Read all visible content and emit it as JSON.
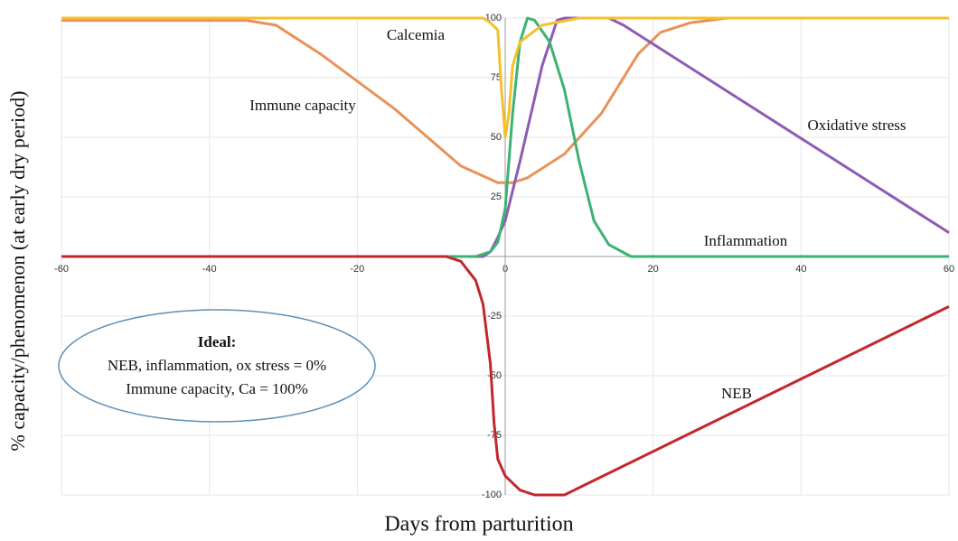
{
  "chart_data": {
    "type": "line",
    "x_label": "Days from parturition",
    "y_label": "% capacity/phenomenon (at early dry period)",
    "xlim": [
      -60,
      60
    ],
    "xticks": [
      -60,
      -40,
      -20,
      0,
      20,
      40,
      60
    ],
    "ylim": [
      -100,
      100
    ],
    "yticks": [
      100,
      75,
      50,
      25,
      -25,
      -50,
      -75,
      -100
    ],
    "grid": true,
    "series": [
      {
        "name": "Immune capacity",
        "color": "#e8925a",
        "x": [
          -60,
          -35,
          -31,
          -25,
          -15,
          -6,
          -1,
          1,
          3,
          8,
          13,
          18,
          21,
          25,
          30,
          60
        ],
        "values": [
          99,
          99,
          97,
          85,
          62,
          38,
          31,
          31,
          33,
          43,
          60,
          85,
          94,
          98,
          100,
          100
        ]
      },
      {
        "name": "Oxidative stress",
        "color": "#8e5bb5",
        "x": [
          -60,
          -3,
          -2,
          -1,
          0,
          2,
          5,
          7,
          8,
          14,
          16,
          60
        ],
        "values": [
          0,
          0,
          2,
          8,
          15,
          40,
          80,
          99,
          100,
          100,
          97,
          10
        ]
      },
      {
        "name": "Inflammation",
        "color": "#3cb371",
        "x": [
          -60,
          -4,
          -2,
          -1,
          0,
          1,
          2,
          3,
          4,
          6,
          8,
          10,
          12,
          14,
          17,
          60
        ],
        "values": [
          0,
          0,
          2,
          6,
          20,
          60,
          90,
          100,
          99,
          90,
          70,
          40,
          15,
          5,
          0,
          0
        ]
      },
      {
        "name": "NEB",
        "color": "#c0282d",
        "x": [
          -60,
          -8,
          -6,
          -4,
          -3,
          -2,
          -1.5,
          -1,
          0,
          2,
          4,
          8,
          60
        ],
        "values": [
          0,
          0,
          -2,
          -10,
          -20,
          -45,
          -70,
          -85,
          -92,
          -98,
          -100,
          -100,
          -21
        ]
      },
      {
        "name": "Calcemia",
        "color": "#f5c02a",
        "x": [
          -60,
          -3,
          -2,
          -1,
          -0.5,
          0,
          0.5,
          1,
          2,
          5,
          10,
          60
        ],
        "values": [
          100,
          100,
          98,
          95,
          70,
          50,
          60,
          80,
          90,
          97,
          100,
          100
        ]
      }
    ],
    "note": [
      "Ideal:",
      "NEB, inflammation, ox stress = 0%",
      "Immune capacity, Ca = 100%"
    ]
  }
}
